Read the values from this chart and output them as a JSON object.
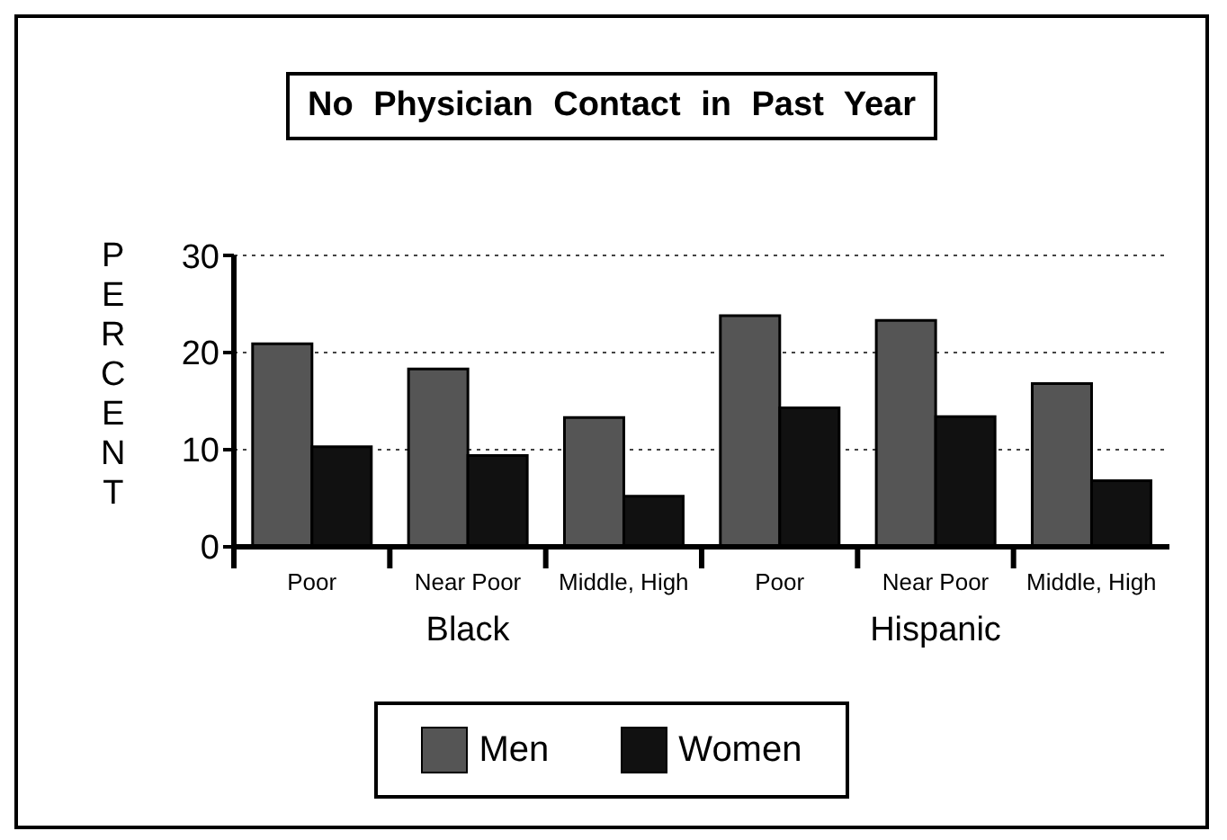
{
  "chart_data": {
    "type": "bar",
    "title": "No Physician Contact in Past Year",
    "ylabel": "PERCENT",
    "categories": [
      "Poor",
      "Near Poor",
      "Middle, High",
      "Poor",
      "Near Poor",
      "Middle, High"
    ],
    "series": [
      {
        "name": "Men",
        "color": "#555555",
        "values": [
          20.9,
          18.3,
          13.3,
          23.8,
          23.3,
          16.8
        ]
      },
      {
        "name": "Women",
        "color": "#111111",
        "values": [
          10.3,
          9.4,
          5.2,
          14.3,
          13.4,
          6.8
        ]
      }
    ],
    "annotations": [
      "Black",
      "Hispanic"
    ],
    "ylim": [
      0,
      30
    ],
    "yticks": [
      0,
      10,
      20,
      30
    ],
    "grid": "y",
    "legend": "bottom"
  }
}
